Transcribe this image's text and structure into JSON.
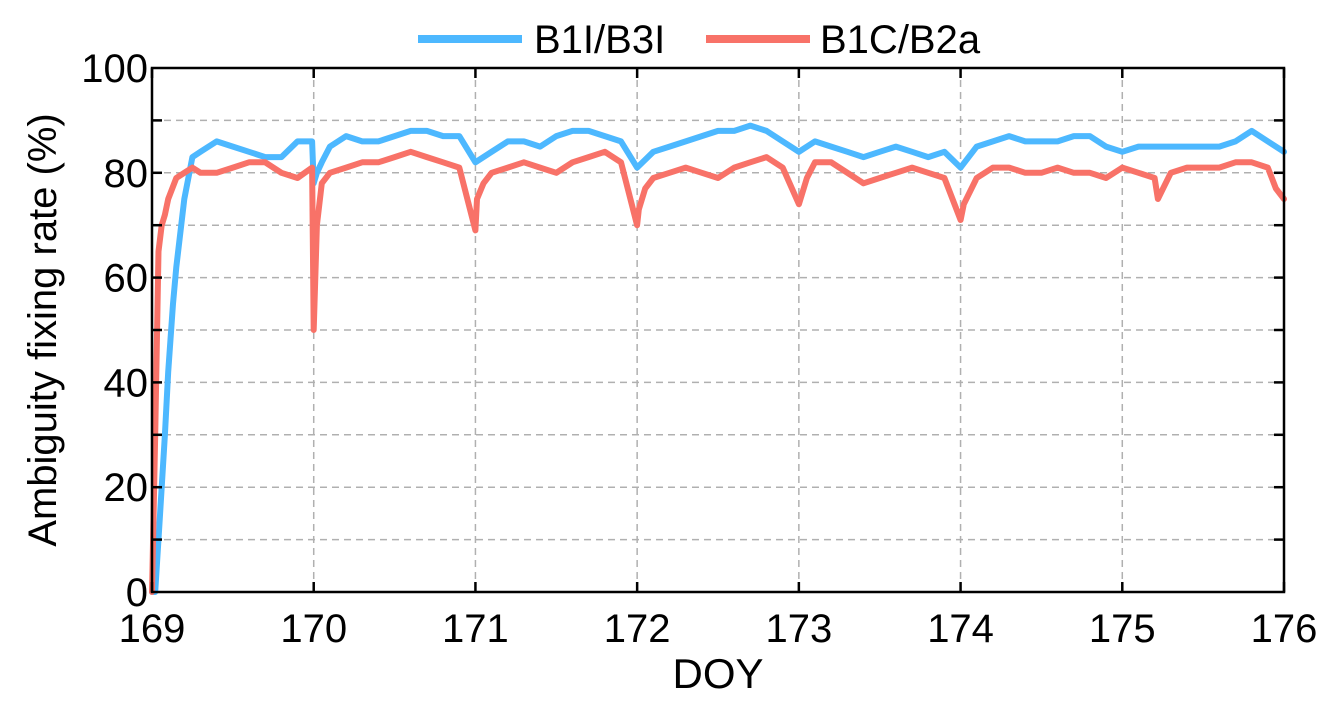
{
  "chart_data": {
    "type": "line",
    "xlabel": "DOY",
    "ylabel": "Ambiguity fixing rate (%)",
    "xlim": [
      169,
      176
    ],
    "ylim": [
      0,
      100
    ],
    "x_ticks": [
      169,
      170,
      171,
      172,
      173,
      174,
      175,
      176
    ],
    "y_ticks": [
      0,
      20,
      40,
      60,
      80,
      100
    ],
    "grid": true,
    "legend_position": "top-center",
    "series": [
      {
        "name": "B1I/B3I",
        "color": "#4db8ff",
        "x": [
          169.0,
          169.02,
          169.05,
          169.08,
          169.1,
          169.13,
          169.15,
          169.2,
          169.25,
          169.3,
          169.4,
          169.5,
          169.6,
          169.7,
          169.8,
          169.9,
          169.99,
          170.0,
          170.02,
          170.05,
          170.1,
          170.2,
          170.3,
          170.4,
          170.5,
          170.6,
          170.7,
          170.8,
          170.9,
          171.0,
          171.1,
          171.2,
          171.3,
          171.4,
          171.5,
          171.6,
          171.7,
          171.8,
          171.9,
          172.0,
          172.1,
          172.2,
          172.3,
          172.4,
          172.5,
          172.6,
          172.7,
          172.8,
          172.9,
          173.0,
          173.1,
          173.2,
          173.3,
          173.4,
          173.5,
          173.6,
          173.7,
          173.8,
          173.9,
          174.0,
          174.1,
          174.2,
          174.3,
          174.4,
          174.5,
          174.6,
          174.7,
          174.8,
          174.9,
          175.0,
          175.1,
          175.2,
          175.3,
          175.4,
          175.5,
          175.6,
          175.7,
          175.8,
          175.9,
          176.0
        ],
        "y": [
          0,
          0,
          15,
          30,
          42,
          55,
          62,
          75,
          83,
          84,
          86,
          85,
          84,
          83,
          83,
          86,
          86,
          78,
          80,
          82,
          85,
          87,
          86,
          86,
          87,
          88,
          88,
          87,
          87,
          82,
          84,
          86,
          86,
          85,
          87,
          88,
          88,
          87,
          86,
          81,
          84,
          85,
          86,
          87,
          88,
          88,
          89,
          88,
          86,
          84,
          86,
          85,
          84,
          83,
          84,
          85,
          84,
          83,
          84,
          81,
          85,
          86,
          87,
          86,
          86,
          86,
          87,
          87,
          85,
          84,
          85,
          85,
          85,
          85,
          85,
          85,
          86,
          88,
          86,
          84
        ]
      },
      {
        "name": "B1C/B2a",
        "color": "#f87268",
        "x": [
          169.0,
          169.02,
          169.04,
          169.06,
          169.08,
          169.1,
          169.15,
          169.2,
          169.25,
          169.3,
          169.4,
          169.5,
          169.6,
          169.7,
          169.8,
          169.9,
          169.99,
          170.0,
          170.02,
          170.05,
          170.1,
          170.2,
          170.3,
          170.4,
          170.5,
          170.6,
          170.7,
          170.8,
          170.9,
          171.0,
          171.01,
          171.05,
          171.1,
          171.2,
          171.3,
          171.4,
          171.5,
          171.6,
          171.7,
          171.8,
          171.9,
          172.0,
          172.01,
          172.05,
          172.1,
          172.2,
          172.3,
          172.4,
          172.5,
          172.6,
          172.7,
          172.8,
          172.9,
          173.0,
          173.05,
          173.1,
          173.2,
          173.3,
          173.4,
          173.5,
          173.6,
          173.7,
          173.8,
          173.9,
          174.0,
          174.02,
          174.1,
          174.2,
          174.3,
          174.4,
          174.5,
          174.6,
          174.7,
          174.8,
          174.9,
          175.0,
          175.1,
          175.2,
          175.22,
          175.3,
          175.4,
          175.5,
          175.6,
          175.7,
          175.8,
          175.9,
          175.95,
          176.0
        ],
        "y": [
          0,
          30,
          65,
          70,
          72,
          75,
          79,
          80,
          81,
          80,
          80,
          81,
          82,
          82,
          80,
          79,
          81,
          50,
          70,
          78,
          80,
          81,
          82,
          82,
          83,
          84,
          83,
          82,
          81,
          69,
          75,
          78,
          80,
          81,
          82,
          81,
          80,
          82,
          83,
          84,
          82,
          70,
          73,
          77,
          79,
          80,
          81,
          80,
          79,
          81,
          82,
          83,
          81,
          74,
          79,
          82,
          82,
          80,
          78,
          79,
          80,
          81,
          80,
          79,
          71,
          74,
          79,
          81,
          81,
          80,
          80,
          81,
          80,
          80,
          79,
          81,
          80,
          79,
          75,
          80,
          81,
          81,
          81,
          82,
          82,
          81,
          77,
          75
        ]
      }
    ]
  }
}
